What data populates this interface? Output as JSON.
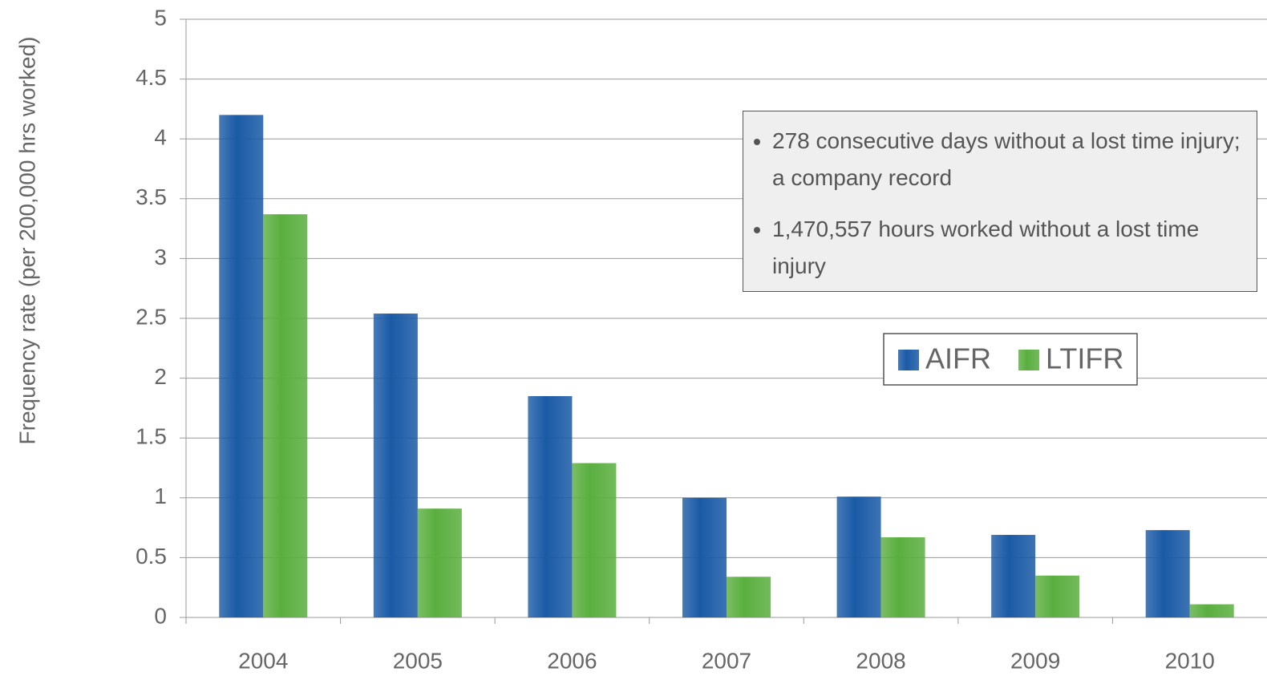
{
  "chart_data": {
    "type": "bar",
    "y_label": "Frequency rate (per 200,000 hrs worked)",
    "categories": [
      "2004",
      "2005",
      "2006",
      "2007",
      "2008",
      "2009",
      "2010"
    ],
    "series": [
      {
        "name": "AIFR",
        "color": "#1a5aa6",
        "values": [
          4.2,
          2.54,
          1.85,
          1.0,
          1.01,
          0.69,
          0.73
        ]
      },
      {
        "name": "LTIFR",
        "color": "#5aae3f",
        "values": [
          3.37,
          0.91,
          1.29,
          0.34,
          0.67,
          0.35,
          0.11
        ]
      }
    ],
    "ylim": [
      0,
      5
    ],
    "yticks": [
      0,
      0.5,
      1,
      1.5,
      2,
      2.5,
      3,
      3.5,
      4,
      4.5,
      5
    ],
    "grid": true,
    "annotations": [
      "278 consecutive days without a lost time injury; a company record",
      "1,470,557 hours worked without a lost time injury"
    ]
  }
}
